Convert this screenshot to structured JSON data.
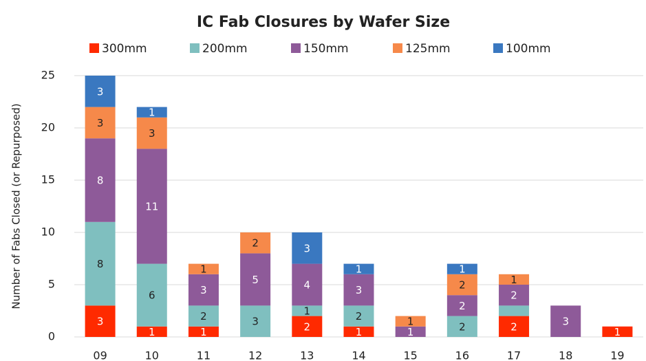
{
  "chart_data": {
    "type": "stacked_bar",
    "title": "IC Fab Closures by Wafer Size",
    "ylabel": "Number of Fabs Closed (or Repurposed)",
    "categories": [
      "09",
      "10",
      "11",
      "12",
      "13",
      "14",
      "15",
      "16",
      "17",
      "18",
      "19"
    ],
    "series": [
      {
        "name": "300mm",
        "color": "#ff2a00",
        "values": [
          3,
          1,
          1,
          0,
          2,
          1,
          0,
          0,
          2,
          0,
          1
        ],
        "value_labels": [
          "3",
          "1",
          "1",
          null,
          "2",
          "1",
          null,
          null,
          "2",
          null,
          "1"
        ]
      },
      {
        "name": "200mm",
        "color": "#7fbfbf",
        "values": [
          8,
          6,
          2,
          3,
          1,
          2,
          0,
          2,
          1,
          0,
          0
        ],
        "value_labels": [
          "8",
          "6",
          "2",
          "3",
          "1",
          "2",
          null,
          "2",
          null,
          null,
          null
        ]
      },
      {
        "name": "150mm",
        "color": "#8e5a99",
        "values": [
          8,
          11,
          3,
          5,
          4,
          3,
          1,
          2,
          2,
          3,
          0
        ],
        "value_labels": [
          "8",
          "11",
          "3",
          "5",
          "4",
          "3",
          "1",
          "2",
          "2",
          "3",
          null
        ]
      },
      {
        "name": "125mm",
        "color": "#f6894a",
        "values": [
          3,
          3,
          1,
          2,
          0,
          0,
          1,
          2,
          1,
          0,
          0
        ],
        "value_labels": [
          "3",
          "3",
          "1",
          "2",
          null,
          null,
          "1",
          "2",
          "1",
          null,
          null
        ]
      },
      {
        "name": "100mm",
        "color": "#3a78c0",
        "values": [
          3,
          1,
          0,
          0,
          3,
          1,
          0,
          1,
          0,
          0,
          0
        ],
        "value_labels": [
          "3",
          "1",
          null,
          null,
          "3",
          "1",
          null,
          "1",
          null,
          null,
          null
        ]
      }
    ],
    "ylim": [
      0,
      25
    ],
    "yticks": [
      0,
      5,
      10,
      15,
      20,
      25
    ],
    "grid": true,
    "legend": "top"
  }
}
